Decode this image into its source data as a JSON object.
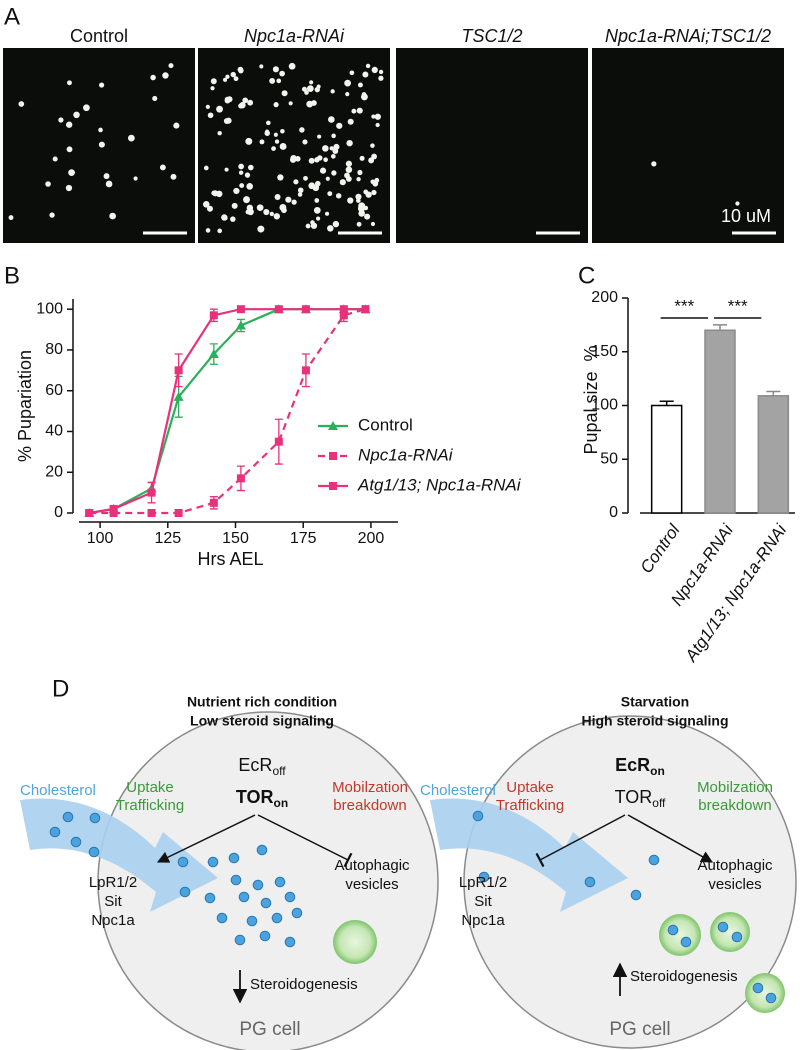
{
  "panel_a": {
    "panel_label": "A",
    "scale_label": "10 uM",
    "images": [
      {
        "title": "Control",
        "italic": false
      },
      {
        "title": "Npc1a-RNAi",
        "italic": true
      },
      {
        "title": "TSC1/2",
        "italic": true
      },
      {
        "title": "Npc1a-RNAi;TSC1/2",
        "italic": true
      }
    ]
  },
  "chart_data": [
    {
      "type": "line",
      "panel_label": "B",
      "xlabel": "Hrs AEL",
      "ylabel": "% Pupariation",
      "x": [
        96,
        105,
        119,
        129,
        142,
        152,
        166,
        176,
        190,
        198
      ],
      "series": [
        {
          "name": "Control",
          "color": "#2bb05a",
          "marker": "triangle",
          "dashed": false,
          "italic": false,
          "values": [
            0,
            2,
            12,
            57,
            78,
            92,
            100,
            100,
            100,
            100
          ],
          "errors": [
            0,
            1,
            3,
            10,
            5,
            3,
            0,
            0,
            0,
            0
          ]
        },
        {
          "name": "Npc1a-RNAi",
          "color": "#e8317a",
          "marker": "square",
          "dashed": true,
          "italic": true,
          "values": [
            0,
            0,
            0,
            0,
            5,
            17,
            35,
            70,
            97,
            100
          ],
          "errors": [
            0,
            0,
            0,
            0,
            3,
            6,
            11,
            8,
            3,
            0
          ]
        },
        {
          "name": "Atg1/13; Npc1a-RNAi",
          "color": "#e8317a",
          "marker": "square",
          "dashed": false,
          "italic": true,
          "values": [
            0,
            2,
            10,
            70,
            97,
            100,
            100,
            100,
            100,
            100
          ],
          "errors": [
            0,
            1,
            5,
            8,
            3,
            0,
            0,
            0,
            0,
            0
          ]
        }
      ],
      "xlim": [
        90,
        210
      ],
      "xticks": [
        100,
        125,
        150,
        175,
        200
      ],
      "ylim": [
        0,
        105
      ],
      "yticks": [
        0,
        20,
        40,
        60,
        80,
        100
      ],
      "legend": "lower right"
    },
    {
      "type": "bar",
      "panel_label": "C",
      "ylabel": "Pupal size  %",
      "categories": [
        "Control",
        "Npc1a-RNAi",
        "Atg1/13; Npc1a-RNAi"
      ],
      "category_italic": true,
      "values": [
        100,
        170,
        109
      ],
      "errors": [
        4,
        5,
        4
      ],
      "colors": [
        "#ffffff",
        "#a3a3a3",
        "#a3a3a3"
      ],
      "edge_colors": [
        "#000000",
        "#8a8a8a",
        "#8a8a8a"
      ],
      "ylim": [
        0,
        200
      ],
      "yticks": [
        0,
        50,
        100,
        150,
        200
      ],
      "significance": [
        {
          "label": "***"
        },
        {
          "label": "***"
        }
      ]
    }
  ],
  "diagram": {
    "panel_label": "D",
    "left": {
      "title": [
        "Nutrient rich condition",
        "Low steroid signaling"
      ],
      "ecr": {
        "base": "EcR",
        "sub": "off"
      },
      "tor": {
        "base": "TOR",
        "sub": "on"
      },
      "uptake": [
        "Uptake",
        "Trafficking"
      ],
      "mobilization": [
        "Mobilzation",
        "breakdown"
      ],
      "cholesterol": "Cholesterol",
      "transporters": [
        "LpR1/2",
        "Sit",
        "Npc1a"
      ],
      "vesicles": [
        "Autophagic",
        "vesicles"
      ],
      "steroidogenesis": "Steroidogenesis",
      "cell": "PG cell"
    },
    "right": {
      "title": [
        "Starvation",
        "High steroid signaling"
      ],
      "ecr": {
        "base": "EcR",
        "sub": "on"
      },
      "tor": {
        "base": "TOR",
        "sub": "off"
      },
      "uptake": [
        "Uptake",
        "Trafficking"
      ],
      "mobilization": [
        "Mobilzation",
        "breakdown"
      ],
      "cholesterol": "Cholesterol",
      "transporters": [
        "LpR1/2",
        "Sit",
        "Npc1a"
      ],
      "vesicles": [
        "Autophagic",
        "vesicles"
      ],
      "steroidogenesis": "Steroidogenesis",
      "cell": "PG cell"
    }
  }
}
